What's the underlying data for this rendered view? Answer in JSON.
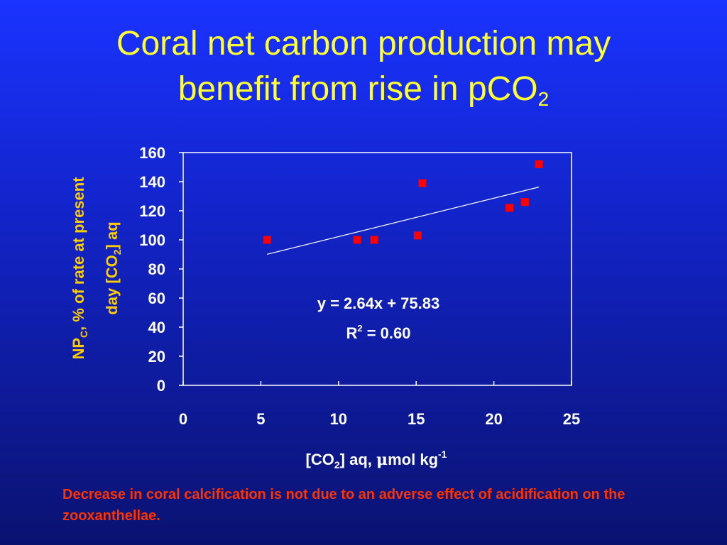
{
  "slide": {
    "title_line1": "Coral net carbon production may",
    "title_line2_main": "benefit from rise in pCO",
    "title_line2_sub": "2",
    "footnote": "Decrease in coral calcification is not due to an adverse effect of acidification on the zooxanthellae."
  },
  "colors": {
    "title": "#ffff33",
    "axis_text": "#ffffff",
    "ylabel": "#ffcc00",
    "marker": "#ff0000",
    "trendline": "#ffffff",
    "footnote": "#ff3300"
  },
  "chart_data": {
    "type": "scatter",
    "title": "",
    "ylabel_line1": {
      "pre": "NP",
      "sub": "C",
      "post": ", % of rate at present"
    },
    "ylabel_line2": {
      "pre": "day [CO",
      "sub": "2",
      "post": "] aq"
    },
    "xlabel": {
      "pre": "[CO",
      "sub": "2",
      "mid": "] aq, ",
      "mu": "μ",
      "post": "mol kg",
      "sup": "-1"
    },
    "xlim": [
      0,
      25
    ],
    "ylim": [
      0,
      160
    ],
    "xticks": [
      "0",
      "5",
      "10",
      "15",
      "20",
      "25"
    ],
    "yticks": [
      "0",
      "20",
      "40",
      "60",
      "80",
      "100",
      "120",
      "140",
      "160"
    ],
    "grid": false,
    "series": [
      {
        "points": [
          {
            "x": 5.4,
            "y": 100
          },
          {
            "x": 11.2,
            "y": 100
          },
          {
            "x": 12.3,
            "y": 100
          },
          {
            "x": 15.1,
            "y": 103
          },
          {
            "x": 15.4,
            "y": 139
          },
          {
            "x": 21.0,
            "y": 122
          },
          {
            "x": 22.0,
            "y": 126
          },
          {
            "x": 22.9,
            "y": 152
          }
        ]
      }
    ],
    "trendline": {
      "equation": "y = 2.64x + 75.83",
      "r2_pre": "R",
      "r2_sup": "2",
      "r2_post": " = 0.60",
      "slope": 2.64,
      "intercept": 75.83,
      "x_range": [
        5.4,
        22.9
      ]
    }
  }
}
